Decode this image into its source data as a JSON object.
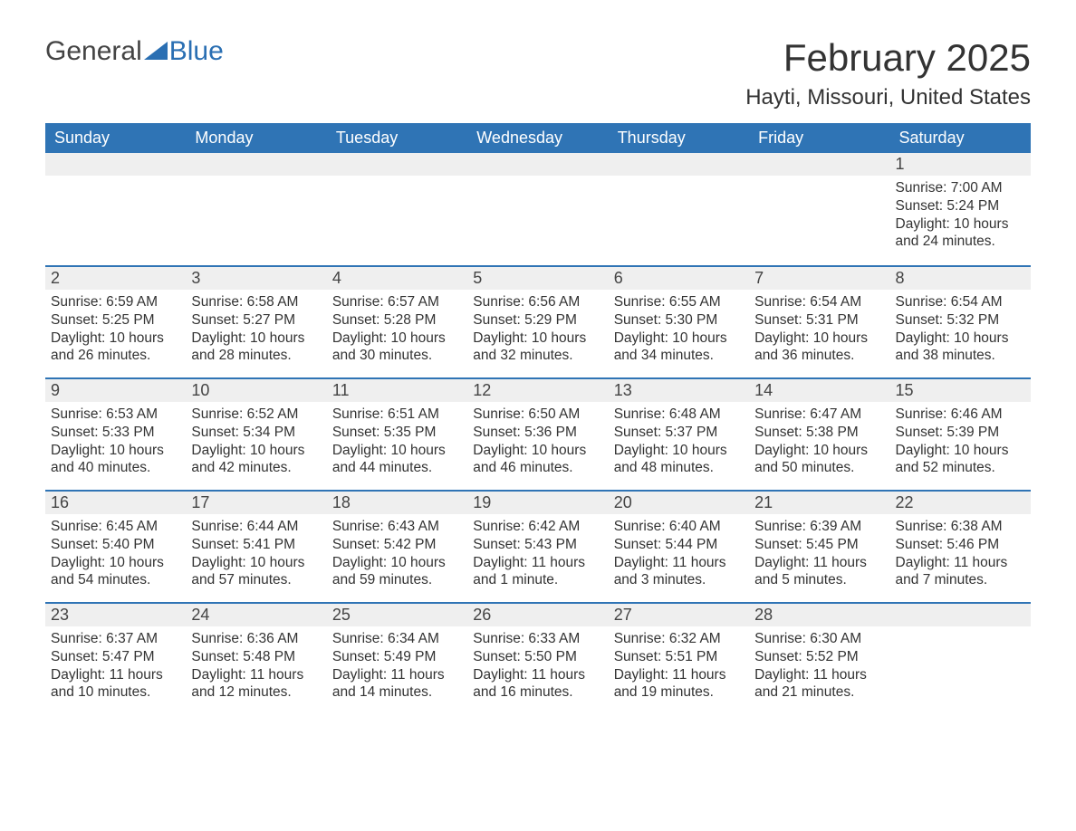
{
  "brand": {
    "part1": "General",
    "part2": "Blue"
  },
  "title": "February 2025",
  "location": "Hayti, Missouri, United States",
  "colors": {
    "header_bg": "#2f74b5",
    "header_text": "#ffffff",
    "row_accent": "#2f74b5",
    "daynum_bg": "#efefef",
    "body_text": "#333333",
    "brand_blue": "#2a6fb3"
  },
  "weekdays": [
    "Sunday",
    "Monday",
    "Tuesday",
    "Wednesday",
    "Thursday",
    "Friday",
    "Saturday"
  ],
  "weeks": [
    [
      null,
      null,
      null,
      null,
      null,
      null,
      {
        "n": "1",
        "sunrise": "Sunrise: 7:00 AM",
        "sunset": "Sunset: 5:24 PM",
        "daylight": "Daylight: 10 hours and 24 minutes."
      }
    ],
    [
      {
        "n": "2",
        "sunrise": "Sunrise: 6:59 AM",
        "sunset": "Sunset: 5:25 PM",
        "daylight": "Daylight: 10 hours and 26 minutes."
      },
      {
        "n": "3",
        "sunrise": "Sunrise: 6:58 AM",
        "sunset": "Sunset: 5:27 PM",
        "daylight": "Daylight: 10 hours and 28 minutes."
      },
      {
        "n": "4",
        "sunrise": "Sunrise: 6:57 AM",
        "sunset": "Sunset: 5:28 PM",
        "daylight": "Daylight: 10 hours and 30 minutes."
      },
      {
        "n": "5",
        "sunrise": "Sunrise: 6:56 AM",
        "sunset": "Sunset: 5:29 PM",
        "daylight": "Daylight: 10 hours and 32 minutes."
      },
      {
        "n": "6",
        "sunrise": "Sunrise: 6:55 AM",
        "sunset": "Sunset: 5:30 PM",
        "daylight": "Daylight: 10 hours and 34 minutes."
      },
      {
        "n": "7",
        "sunrise": "Sunrise: 6:54 AM",
        "sunset": "Sunset: 5:31 PM",
        "daylight": "Daylight: 10 hours and 36 minutes."
      },
      {
        "n": "8",
        "sunrise": "Sunrise: 6:54 AM",
        "sunset": "Sunset: 5:32 PM",
        "daylight": "Daylight: 10 hours and 38 minutes."
      }
    ],
    [
      {
        "n": "9",
        "sunrise": "Sunrise: 6:53 AM",
        "sunset": "Sunset: 5:33 PM",
        "daylight": "Daylight: 10 hours and 40 minutes."
      },
      {
        "n": "10",
        "sunrise": "Sunrise: 6:52 AM",
        "sunset": "Sunset: 5:34 PM",
        "daylight": "Daylight: 10 hours and 42 minutes."
      },
      {
        "n": "11",
        "sunrise": "Sunrise: 6:51 AM",
        "sunset": "Sunset: 5:35 PM",
        "daylight": "Daylight: 10 hours and 44 minutes."
      },
      {
        "n": "12",
        "sunrise": "Sunrise: 6:50 AM",
        "sunset": "Sunset: 5:36 PM",
        "daylight": "Daylight: 10 hours and 46 minutes."
      },
      {
        "n": "13",
        "sunrise": "Sunrise: 6:48 AM",
        "sunset": "Sunset: 5:37 PM",
        "daylight": "Daylight: 10 hours and 48 minutes."
      },
      {
        "n": "14",
        "sunrise": "Sunrise: 6:47 AM",
        "sunset": "Sunset: 5:38 PM",
        "daylight": "Daylight: 10 hours and 50 minutes."
      },
      {
        "n": "15",
        "sunrise": "Sunrise: 6:46 AM",
        "sunset": "Sunset: 5:39 PM",
        "daylight": "Daylight: 10 hours and 52 minutes."
      }
    ],
    [
      {
        "n": "16",
        "sunrise": "Sunrise: 6:45 AM",
        "sunset": "Sunset: 5:40 PM",
        "daylight": "Daylight: 10 hours and 54 minutes."
      },
      {
        "n": "17",
        "sunrise": "Sunrise: 6:44 AM",
        "sunset": "Sunset: 5:41 PM",
        "daylight": "Daylight: 10 hours and 57 minutes."
      },
      {
        "n": "18",
        "sunrise": "Sunrise: 6:43 AM",
        "sunset": "Sunset: 5:42 PM",
        "daylight": "Daylight: 10 hours and 59 minutes."
      },
      {
        "n": "19",
        "sunrise": "Sunrise: 6:42 AM",
        "sunset": "Sunset: 5:43 PM",
        "daylight": "Daylight: 11 hours and 1 minute."
      },
      {
        "n": "20",
        "sunrise": "Sunrise: 6:40 AM",
        "sunset": "Sunset: 5:44 PM",
        "daylight": "Daylight: 11 hours and 3 minutes."
      },
      {
        "n": "21",
        "sunrise": "Sunrise: 6:39 AM",
        "sunset": "Sunset: 5:45 PM",
        "daylight": "Daylight: 11 hours and 5 minutes."
      },
      {
        "n": "22",
        "sunrise": "Sunrise: 6:38 AM",
        "sunset": "Sunset: 5:46 PM",
        "daylight": "Daylight: 11 hours and 7 minutes."
      }
    ],
    [
      {
        "n": "23",
        "sunrise": "Sunrise: 6:37 AM",
        "sunset": "Sunset: 5:47 PM",
        "daylight": "Daylight: 11 hours and 10 minutes."
      },
      {
        "n": "24",
        "sunrise": "Sunrise: 6:36 AM",
        "sunset": "Sunset: 5:48 PM",
        "daylight": "Daylight: 11 hours and 12 minutes."
      },
      {
        "n": "25",
        "sunrise": "Sunrise: 6:34 AM",
        "sunset": "Sunset: 5:49 PM",
        "daylight": "Daylight: 11 hours and 14 minutes."
      },
      {
        "n": "26",
        "sunrise": "Sunrise: 6:33 AM",
        "sunset": "Sunset: 5:50 PM",
        "daylight": "Daylight: 11 hours and 16 minutes."
      },
      {
        "n": "27",
        "sunrise": "Sunrise: 6:32 AM",
        "sunset": "Sunset: 5:51 PM",
        "daylight": "Daylight: 11 hours and 19 minutes."
      },
      {
        "n": "28",
        "sunrise": "Sunrise: 6:30 AM",
        "sunset": "Sunset: 5:52 PM",
        "daylight": "Daylight: 11 hours and 21 minutes."
      },
      null
    ]
  ]
}
